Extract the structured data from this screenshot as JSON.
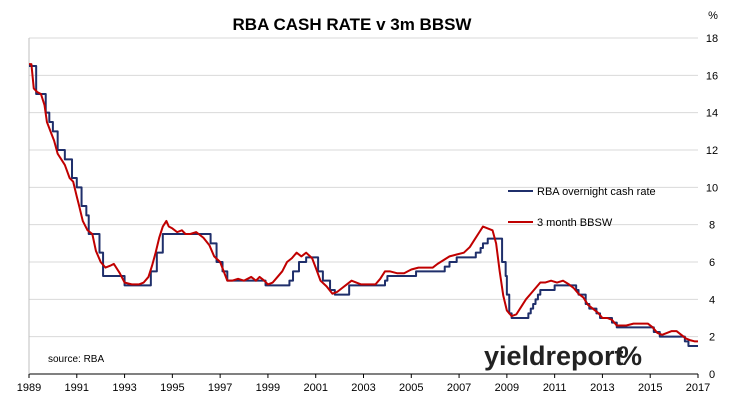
{
  "chart_data": {
    "type": "line",
    "title": "RBA CASH RATE v 3m BBSW",
    "y_unit_label": "%",
    "source_note": "source: RBA",
    "logo_text": "yieldreport",
    "logo_symbol": "%",
    "xlim": [
      1989,
      2017
    ],
    "ylim": [
      0,
      18
    ],
    "x_ticks": [
      "1989",
      "1991",
      "1993",
      "1995",
      "1997",
      "1999",
      "2001",
      "2003",
      "2005",
      "2007",
      "2009",
      "2011",
      "2013",
      "2015",
      "2017"
    ],
    "y_ticks": [
      "0",
      "2",
      "4",
      "6",
      "8",
      "10",
      "12",
      "14",
      "16",
      "18"
    ],
    "y_axis_side": "right",
    "grid": true,
    "legend_position": "center-right",
    "colors": {
      "cash": "#1f2f6b",
      "bbsw": "#c00000",
      "grid": "#d9d9d9",
      "logo_red": "#c0392b",
      "logo_green": "#3a9a3a"
    },
    "series": [
      {
        "name": "RBA overnight cash rate",
        "step": true,
        "points": [
          [
            1989.0,
            16.5
          ],
          [
            1989.25,
            16.5
          ],
          [
            1989.3,
            15.0
          ],
          [
            1989.6,
            15.0
          ],
          [
            1989.7,
            14.0
          ],
          [
            1989.85,
            13.5
          ],
          [
            1990.0,
            13.0
          ],
          [
            1990.2,
            12.0
          ],
          [
            1990.45,
            12.0
          ],
          [
            1990.5,
            11.5
          ],
          [
            1990.8,
            10.5
          ],
          [
            1990.95,
            10.5
          ],
          [
            1991.0,
            10.0
          ],
          [
            1991.2,
            9.0
          ],
          [
            1991.4,
            8.5
          ],
          [
            1991.5,
            7.5
          ],
          [
            1991.85,
            7.5
          ],
          [
            1991.95,
            6.5
          ],
          [
            1992.1,
            5.25
          ],
          [
            1992.5,
            5.25
          ],
          [
            1992.55,
            5.25
          ],
          [
            1993.0,
            4.75
          ],
          [
            1993.8,
            4.75
          ],
          [
            1994.0,
            4.75
          ],
          [
            1994.1,
            5.5
          ],
          [
            1994.35,
            6.5
          ],
          [
            1994.6,
            7.5
          ],
          [
            1995.4,
            7.5
          ],
          [
            1995.7,
            7.5
          ],
          [
            1996.0,
            7.5
          ],
          [
            1996.6,
            7.0
          ],
          [
            1996.85,
            6.0
          ],
          [
            1997.1,
            5.5
          ],
          [
            1997.3,
            5.0
          ],
          [
            1997.5,
            5.0
          ],
          [
            1998.0,
            5.0
          ],
          [
            1998.5,
            5.0
          ],
          [
            1998.9,
            4.75
          ],
          [
            1999.3,
            4.75
          ],
          [
            1999.9,
            5.0
          ],
          [
            2000.05,
            5.5
          ],
          [
            2000.3,
            6.0
          ],
          [
            2000.6,
            6.25
          ],
          [
            2000.9,
            6.25
          ],
          [
            2001.1,
            5.5
          ],
          [
            2001.3,
            5.0
          ],
          [
            2001.6,
            4.5
          ],
          [
            2001.8,
            4.25
          ],
          [
            2002.2,
            4.25
          ],
          [
            2002.4,
            4.75
          ],
          [
            2002.8,
            4.75
          ],
          [
            2003.2,
            4.75
          ],
          [
            2003.8,
            4.75
          ],
          [
            2003.9,
            5.0
          ],
          [
            2004.0,
            5.25
          ],
          [
            2005.0,
            5.25
          ],
          [
            2005.2,
            5.5
          ],
          [
            2006.0,
            5.5
          ],
          [
            2006.4,
            5.75
          ],
          [
            2006.6,
            6.0
          ],
          [
            2006.9,
            6.25
          ],
          [
            2007.6,
            6.25
          ],
          [
            2007.7,
            6.5
          ],
          [
            2007.9,
            6.75
          ],
          [
            2008.0,
            7.0
          ],
          [
            2008.2,
            7.25
          ],
          [
            2008.7,
            7.25
          ],
          [
            2008.8,
            6.0
          ],
          [
            2008.95,
            5.25
          ],
          [
            2009.0,
            4.25
          ],
          [
            2009.1,
            3.25
          ],
          [
            2009.2,
            3.0
          ],
          [
            2009.8,
            3.0
          ],
          [
            2009.9,
            3.25
          ],
          [
            2010.0,
            3.5
          ],
          [
            2010.1,
            3.75
          ],
          [
            2010.2,
            4.0
          ],
          [
            2010.3,
            4.25
          ],
          [
            2010.4,
            4.5
          ],
          [
            2010.9,
            4.5
          ],
          [
            2011.0,
            4.75
          ],
          [
            2011.8,
            4.75
          ],
          [
            2011.9,
            4.5
          ],
          [
            2012.0,
            4.25
          ],
          [
            2012.3,
            3.75
          ],
          [
            2012.45,
            3.5
          ],
          [
            2012.75,
            3.25
          ],
          [
            2012.9,
            3.0
          ],
          [
            2013.3,
            3.0
          ],
          [
            2013.4,
            2.75
          ],
          [
            2013.6,
            2.5
          ],
          [
            2015.1,
            2.5
          ],
          [
            2015.15,
            2.25
          ],
          [
            2015.4,
            2.0
          ],
          [
            2016.4,
            2.0
          ],
          [
            2016.45,
            1.75
          ],
          [
            2016.6,
            1.5
          ],
          [
            2017.0,
            1.5
          ]
        ]
      },
      {
        "name": "3 month BBSW",
        "step": false,
        "points": [
          [
            1989.0,
            16.6
          ],
          [
            1989.1,
            16.6
          ],
          [
            1989.2,
            15.3
          ],
          [
            1989.35,
            15.1
          ],
          [
            1989.5,
            15.0
          ],
          [
            1989.65,
            14.4
          ],
          [
            1989.75,
            13.5
          ],
          [
            1989.9,
            13.0
          ],
          [
            1990.05,
            12.5
          ],
          [
            1990.2,
            11.8
          ],
          [
            1990.35,
            11.5
          ],
          [
            1990.5,
            11.2
          ],
          [
            1990.7,
            10.5
          ],
          [
            1990.85,
            10.3
          ],
          [
            1991.0,
            9.5
          ],
          [
            1991.1,
            9.0
          ],
          [
            1991.25,
            8.2
          ],
          [
            1991.45,
            7.7
          ],
          [
            1991.65,
            7.5
          ],
          [
            1991.8,
            6.6
          ],
          [
            1992.0,
            6.0
          ],
          [
            1992.2,
            5.7
          ],
          [
            1992.4,
            5.8
          ],
          [
            1992.55,
            5.9
          ],
          [
            1992.8,
            5.4
          ],
          [
            1993.0,
            4.9
          ],
          [
            1993.3,
            4.8
          ],
          [
            1993.6,
            4.8
          ],
          [
            1993.8,
            4.9
          ],
          [
            1994.0,
            5.2
          ],
          [
            1994.15,
            5.8
          ],
          [
            1994.3,
            6.5
          ],
          [
            1994.45,
            7.3
          ],
          [
            1994.6,
            7.9
          ],
          [
            1994.75,
            8.2
          ],
          [
            1994.85,
            7.9
          ],
          [
            1995.0,
            7.8
          ],
          [
            1995.2,
            7.6
          ],
          [
            1995.4,
            7.7
          ],
          [
            1995.55,
            7.5
          ],
          [
            1995.75,
            7.5
          ],
          [
            1996.0,
            7.6
          ],
          [
            1996.3,
            7.3
          ],
          [
            1996.55,
            6.9
          ],
          [
            1996.75,
            6.3
          ],
          [
            1997.0,
            6.0
          ],
          [
            1997.15,
            5.5
          ],
          [
            1997.3,
            5.0
          ],
          [
            1997.5,
            5.0
          ],
          [
            1997.75,
            5.1
          ],
          [
            1998.0,
            5.0
          ],
          [
            1998.3,
            5.2
          ],
          [
            1998.5,
            5.0
          ],
          [
            1998.65,
            5.2
          ],
          [
            1998.85,
            5.0
          ],
          [
            1999.0,
            4.8
          ],
          [
            1999.2,
            4.9
          ],
          [
            1999.4,
            5.2
          ],
          [
            1999.6,
            5.5
          ],
          [
            1999.8,
            6.0
          ],
          [
            2000.0,
            6.2
          ],
          [
            2000.2,
            6.5
          ],
          [
            2000.4,
            6.3
          ],
          [
            2000.6,
            6.5
          ],
          [
            2000.85,
            6.2
          ],
          [
            2001.0,
            5.7
          ],
          [
            2001.2,
            5.0
          ],
          [
            2001.45,
            4.7
          ],
          [
            2001.7,
            4.3
          ],
          [
            2001.9,
            4.4
          ],
          [
            2002.1,
            4.6
          ],
          [
            2002.3,
            4.8
          ],
          [
            2002.5,
            5.0
          ],
          [
            2002.7,
            4.9
          ],
          [
            2002.9,
            4.8
          ],
          [
            2003.1,
            4.8
          ],
          [
            2003.3,
            4.8
          ],
          [
            2003.5,
            4.8
          ],
          [
            2003.7,
            5.1
          ],
          [
            2003.9,
            5.5
          ],
          [
            2004.1,
            5.5
          ],
          [
            2004.4,
            5.4
          ],
          [
            2004.7,
            5.4
          ],
          [
            2005.0,
            5.6
          ],
          [
            2005.3,
            5.7
          ],
          [
            2005.6,
            5.7
          ],
          [
            2005.9,
            5.7
          ],
          [
            2006.1,
            5.9
          ],
          [
            2006.35,
            6.1
          ],
          [
            2006.6,
            6.3
          ],
          [
            2006.9,
            6.4
          ],
          [
            2007.2,
            6.5
          ],
          [
            2007.45,
            6.8
          ],
          [
            2007.65,
            7.2
          ],
          [
            2007.85,
            7.6
          ],
          [
            2008.0,
            7.9
          ],
          [
            2008.2,
            7.8
          ],
          [
            2008.4,
            7.7
          ],
          [
            2008.55,
            7.0
          ],
          [
            2008.7,
            5.5
          ],
          [
            2008.85,
            4.2
          ],
          [
            2009.0,
            3.4
          ],
          [
            2009.2,
            3.1
          ],
          [
            2009.4,
            3.2
          ],
          [
            2009.6,
            3.6
          ],
          [
            2009.8,
            4.0
          ],
          [
            2010.0,
            4.3
          ],
          [
            2010.2,
            4.6
          ],
          [
            2010.4,
            4.9
          ],
          [
            2010.6,
            4.9
          ],
          [
            2010.85,
            5.0
          ],
          [
            2011.1,
            4.9
          ],
          [
            2011.35,
            5.0
          ],
          [
            2011.6,
            4.8
          ],
          [
            2011.8,
            4.6
          ],
          [
            2012.0,
            4.3
          ],
          [
            2012.2,
            4.1
          ],
          [
            2012.4,
            3.7
          ],
          [
            2012.6,
            3.5
          ],
          [
            2012.8,
            3.3
          ],
          [
            2013.0,
            3.0
          ],
          [
            2013.2,
            3.0
          ],
          [
            2013.4,
            2.9
          ],
          [
            2013.6,
            2.6
          ],
          [
            2013.8,
            2.6
          ],
          [
            2014.0,
            2.6
          ],
          [
            2014.3,
            2.7
          ],
          [
            2014.6,
            2.7
          ],
          [
            2014.9,
            2.7
          ],
          [
            2015.1,
            2.5
          ],
          [
            2015.3,
            2.2
          ],
          [
            2015.5,
            2.1
          ],
          [
            2015.7,
            2.2
          ],
          [
            2015.9,
            2.3
          ],
          [
            2016.1,
            2.3
          ],
          [
            2016.3,
            2.1
          ],
          [
            2016.5,
            1.9
          ],
          [
            2016.7,
            1.8
          ],
          [
            2016.85,
            1.75
          ],
          [
            2017.0,
            1.75
          ]
        ]
      }
    ]
  }
}
